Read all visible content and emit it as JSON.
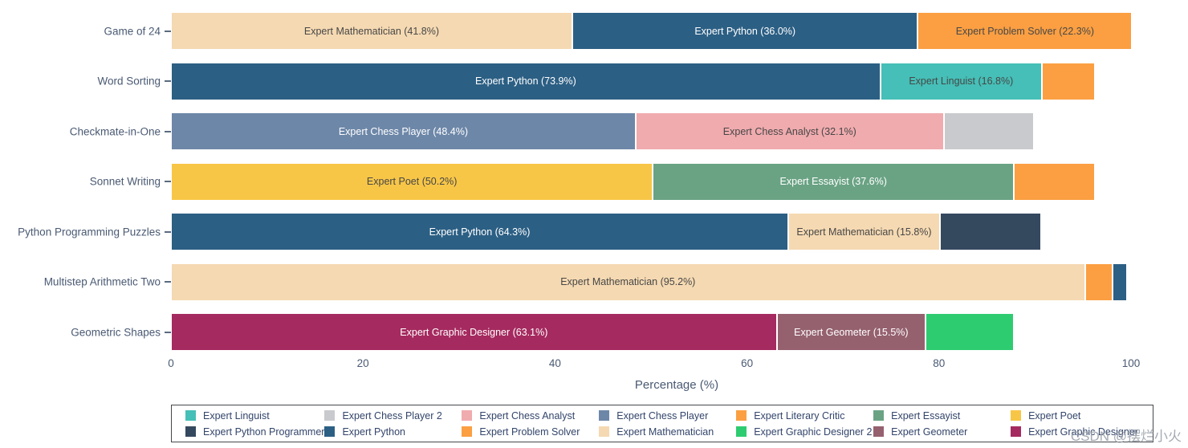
{
  "watermark": "CSDN @摆烂小火",
  "chart_data": {
    "type": "bar",
    "orientation": "horizontal_stacked",
    "title": "",
    "xlabel": "Percentage (%)",
    "ylabel": "",
    "xlim": [
      0,
      100
    ],
    "x_ticks": [
      0,
      20,
      40,
      60,
      80,
      100
    ],
    "grid": false,
    "legend_position": "bottom",
    "colors": {
      "linguist": "#45bfb7",
      "chess_player_2": "#c9cacd",
      "chess_analyst": "#f0abae",
      "chess_player": "#6d87a8",
      "literary_critic": "#fb9f42",
      "essayist": "#6aa384",
      "poet": "#f8c647",
      "python_programmer": "#35495e",
      "python": "#2c5f84",
      "problem_solver": "#fb9f42",
      "mathematician": "#f5d9b2",
      "graphic_designer_2": "#2ecc71",
      "geometer": "#95616f",
      "graphic_designer": "#a52a5f",
      "orange_unlabeled": "#fb9f42"
    },
    "categories": [
      "Game of 24",
      "Word Sorting",
      "Checkmate-in-One",
      "Sonnet Writing",
      "Python Programming Puzzles",
      "Multistep Arithmetic Two",
      "Geometric Shapes"
    ],
    "rows": [
      {
        "category": "Game of 24",
        "segments": [
          {
            "expert": "Expert Mathematician",
            "value": 41.8,
            "label": "Expert Mathematician (41.8%)",
            "color": "mathematician",
            "text": "dark",
            "estimated": false
          },
          {
            "expert": "Expert Python",
            "value": 36.0,
            "label": "Expert Python (36.0%)",
            "color": "python",
            "text": "light",
            "estimated": false
          },
          {
            "expert": "Expert Problem Solver",
            "value": 22.3,
            "label": "Expert Problem Solver (22.3%)",
            "color": "problem_solver",
            "text": "dark",
            "estimated": false
          }
        ]
      },
      {
        "category": "Word Sorting",
        "segments": [
          {
            "expert": "Expert Python",
            "value": 73.9,
            "label": "Expert Python (73.9%)",
            "color": "python",
            "text": "light",
            "estimated": false
          },
          {
            "expert": "Expert Linguist",
            "value": 16.8,
            "label": "Expert Linguist (16.8%)",
            "color": "linguist",
            "text": "dark",
            "estimated": false
          },
          {
            "expert": "Unlabeled (orange)",
            "value": 5.5,
            "label": "",
            "color": "orange_unlabeled",
            "text": null,
            "estimated": true
          }
        ]
      },
      {
        "category": "Checkmate-in-One",
        "segments": [
          {
            "expert": "Expert Chess Player",
            "value": 48.4,
            "label": "Expert Chess Player (48.4%)",
            "color": "chess_player",
            "text": "light",
            "estimated": false
          },
          {
            "expert": "Expert Chess Analyst",
            "value": 32.1,
            "label": "Expert Chess Analyst (32.1%)",
            "color": "chess_analyst",
            "text": "dark",
            "estimated": false
          },
          {
            "expert": "Expert Chess Player 2",
            "value": 9.4,
            "label": "",
            "color": "chess_player_2",
            "text": null,
            "estimated": true
          }
        ]
      },
      {
        "category": "Sonnet Writing",
        "segments": [
          {
            "expert": "Expert Poet",
            "value": 50.2,
            "label": "Expert Poet (50.2%)",
            "color": "poet",
            "text": "dark",
            "estimated": false
          },
          {
            "expert": "Expert Essayist",
            "value": 37.6,
            "label": "Expert Essayist (37.6%)",
            "color": "essayist",
            "text": "light",
            "estimated": false
          },
          {
            "expert": "Unlabeled (orange)",
            "value": 8.4,
            "label": "",
            "color": "orange_unlabeled",
            "text": null,
            "estimated": true
          }
        ]
      },
      {
        "category": "Python Programming Puzzles",
        "segments": [
          {
            "expert": "Expert Python",
            "value": 64.3,
            "label": "Expert Python (64.3%)",
            "color": "python",
            "text": "light",
            "estimated": false
          },
          {
            "expert": "Expert Mathematician",
            "value": 15.8,
            "label": "Expert Mathematician (15.8%)",
            "color": "mathematician",
            "text": "dark",
            "estimated": false
          },
          {
            "expert": "Expert Python Programmer",
            "value": 10.5,
            "label": "",
            "color": "python_programmer",
            "text": null,
            "estimated": true
          }
        ]
      },
      {
        "category": "Multistep Arithmetic Two",
        "segments": [
          {
            "expert": "Expert Mathematician",
            "value": 95.2,
            "label": "Expert Mathematician (95.2%)",
            "color": "mathematician",
            "text": "dark",
            "estimated": false
          },
          {
            "expert": "Unlabeled (orange)",
            "value": 2.9,
            "label": "",
            "color": "orange_unlabeled",
            "text": null,
            "estimated": true
          },
          {
            "expert": "Expert Python",
            "value": 1.5,
            "label": "",
            "color": "python",
            "text": null,
            "estimated": true
          }
        ]
      },
      {
        "category": "Geometric Shapes",
        "segments": [
          {
            "expert": "Expert Graphic Designer",
            "value": 63.1,
            "label": "Expert Graphic Designer (63.1%)",
            "color": "graphic_designer",
            "text": "light",
            "estimated": false
          },
          {
            "expert": "Expert Geometer",
            "value": 15.5,
            "label": "Expert Geometer (15.5%)",
            "color": "geometer",
            "text": "light",
            "estimated": false
          },
          {
            "expert": "Expert Graphic Designer 2",
            "value": 9.2,
            "label": "",
            "color": "graphic_designer_2",
            "text": null,
            "estimated": true
          }
        ]
      }
    ],
    "legend": [
      [
        {
          "name": "Expert Linguist",
          "color": "linguist"
        },
        {
          "name": "Expert Chess Player 2",
          "color": "chess_player_2"
        },
        {
          "name": "Expert Chess Analyst",
          "color": "chess_analyst"
        },
        {
          "name": "Expert Chess Player",
          "color": "chess_player"
        },
        {
          "name": "Expert Literary Critic",
          "color": "literary_critic"
        },
        {
          "name": "Expert Essayist",
          "color": "essayist"
        },
        {
          "name": "Expert Poet",
          "color": "poet"
        }
      ],
      [
        {
          "name": "Expert Python Programmer",
          "color": "python_programmer"
        },
        {
          "name": "Expert Python",
          "color": "python"
        },
        {
          "name": "Expert Problem Solver",
          "color": "problem_solver"
        },
        {
          "name": "Expert Mathematician",
          "color": "mathematician"
        },
        {
          "name": "Expert Graphic Designer 2",
          "color": "graphic_designer_2"
        },
        {
          "name": "Expert Geometer",
          "color": "geometer"
        },
        {
          "name": "Expert Graphic Designer",
          "color": "graphic_designer"
        }
      ]
    ]
  }
}
